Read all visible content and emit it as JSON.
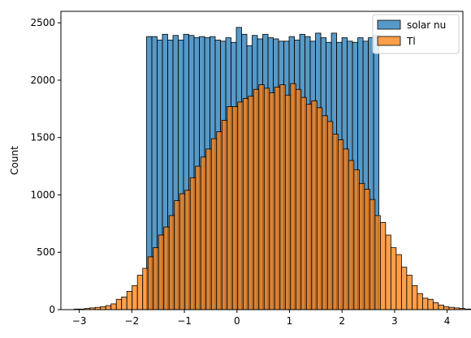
{
  "chart_data": {
    "type": "histogram",
    "title": "",
    "xlabel": "",
    "ylabel": "Count",
    "xlim": [
      -3.35,
      4.3
    ],
    "ylim": [
      0,
      2600
    ],
    "xticks": [
      -3,
      -2,
      -1,
      0,
      1,
      2,
      3,
      4
    ],
    "yticks": [
      0,
      500,
      1000,
      1500,
      2000,
      2500
    ],
    "grid": false,
    "legend_position": "top-right",
    "colors": {
      "solar nu": "#1f77b4",
      "Tl": "#ff7f0e",
      "bar_edge": "#000000"
    },
    "series": [
      {
        "name": "solar nu",
        "bin_start": -1.72,
        "bin_width": 0.1005,
        "values": [
          2380,
          2380,
          2350,
          2400,
          2350,
          2390,
          2350,
          2400,
          2390,
          2370,
          2380,
          2370,
          2380,
          2350,
          2340,
          2370,
          2330,
          2460,
          2400,
          2300,
          2390,
          2360,
          2400,
          2370,
          2360,
          2340,
          2340,
          2380,
          2350,
          2400,
          2380,
          2340,
          2410,
          2370,
          2330,
          2410,
          2330,
          2370,
          2340,
          2330,
          2370,
          2340,
          2370,
          2390
        ]
      },
      {
        "name": "Tl",
        "bin_start": -3.1,
        "bin_width": 0.1005,
        "values": [
          5,
          5,
          10,
          15,
          20,
          25,
          35,
          50,
          90,
          110,
          160,
          210,
          300,
          360,
          460,
          540,
          650,
          720,
          820,
          950,
          1010,
          1040,
          1150,
          1250,
          1330,
          1400,
          1490,
          1550,
          1650,
          1770,
          1770,
          1810,
          1840,
          1860,
          1920,
          1960,
          1930,
          1890,
          1940,
          1960,
          1870,
          1970,
          1920,
          1850,
          1790,
          1820,
          1760,
          1690,
          1640,
          1530,
          1480,
          1400,
          1300,
          1220,
          1100,
          1050,
          960,
          820,
          760,
          650,
          540,
          480,
          370,
          300,
          210,
          140,
          100,
          90,
          60,
          40,
          25,
          20,
          15,
          10,
          5,
          5,
          3,
          3
        ]
      }
    ]
  }
}
